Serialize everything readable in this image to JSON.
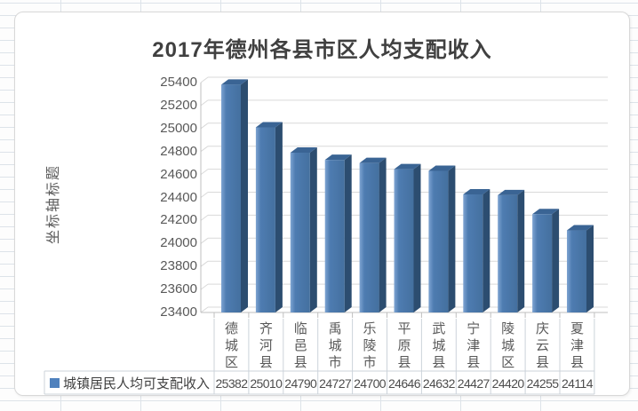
{
  "chart_data": {
    "type": "bar",
    "style": "3d-column",
    "title": "2017年德州各县市区人均支配收入",
    "y_axis_title": "坐标轴标题",
    "categories": [
      "德城区",
      "齐河县",
      "临邑县",
      "禹城市",
      "乐陵市",
      "平原县",
      "武城县",
      "宁津县",
      "陵城区",
      "庆云县",
      "夏津县"
    ],
    "series": [
      {
        "name": "城镇居民人均可支配收入",
        "values": [
          25382,
          25010,
          24790,
          24727,
          24700,
          24646,
          24632,
          24427,
          24420,
          24255,
          24114
        ]
      }
    ],
    "ylim": [
      23400,
      25400
    ],
    "y_tick_step": 200,
    "y_ticks": [
      23400,
      23600,
      23800,
      24000,
      24200,
      24400,
      24600,
      24800,
      25000,
      25200,
      25400
    ],
    "grid": true,
    "legend_position": "bottom-data-table",
    "data_table": true
  },
  "colors": {
    "bar_front_light": "#7ea4d2",
    "bar_front_mid": "#4e7cb1",
    "bar_front_dark": "#44709f",
    "bar_side": "#2c4d70",
    "bar_top": "#3a6494",
    "legend_marker": "#4f81bd",
    "gridline": "#d9d9d9",
    "axis_line": "#bfbfbf",
    "table_border": "#ccd3da",
    "title_text": "#404040",
    "axis_text": "#595959"
  }
}
